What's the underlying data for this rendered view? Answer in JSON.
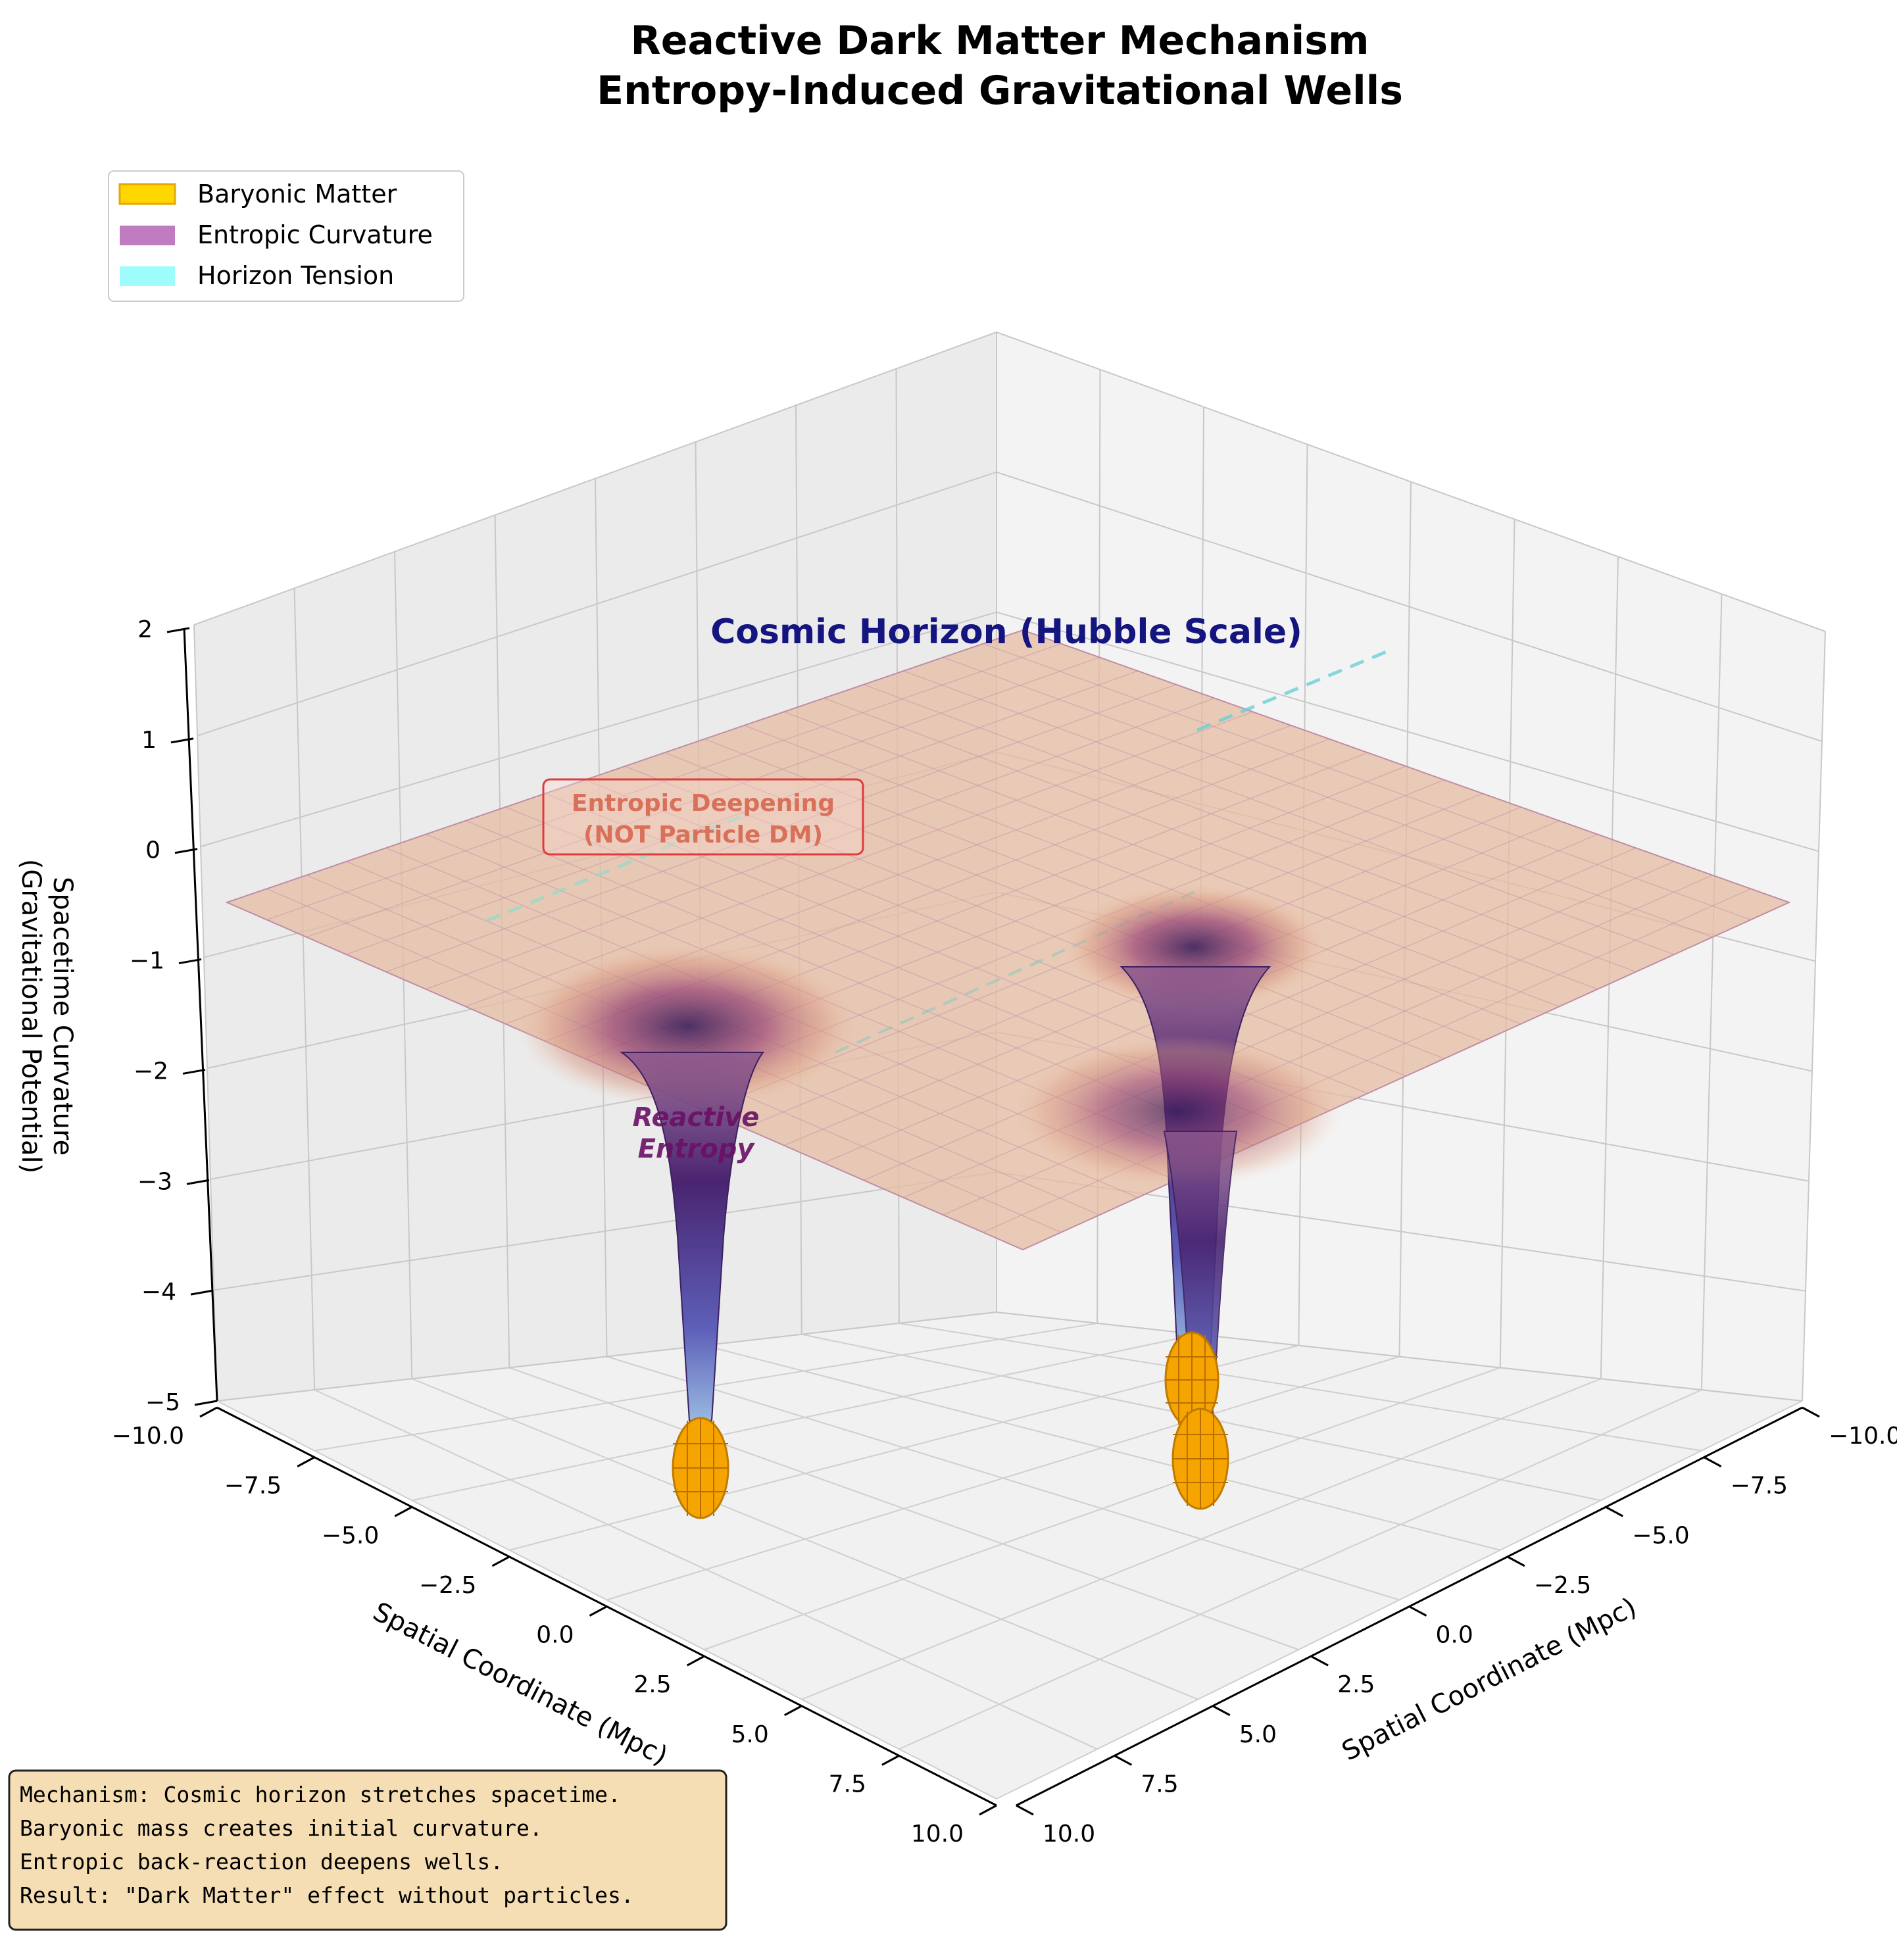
{
  "chart_data": {
    "type": "surface3d",
    "title": [
      "Reactive Dark Matter Mechanism",
      "Entropy-Induced Gravitational Wells"
    ],
    "x_axis": {
      "label": "Spatial Coordinate (Mpc)",
      "ticks": [
        "−10.0",
        "−7.5",
        "−5.0",
        "−2.5",
        "0.0",
        "2.5",
        "5.0",
        "7.5",
        "10.0"
      ],
      "range": [
        -10,
        10
      ]
    },
    "y_axis": {
      "label": "Spatial Coordinate (Mpc)",
      "ticks": [
        "−10.0",
        "−7.5",
        "−5.0",
        "−2.5",
        "0.0",
        "2.5",
        "5.0",
        "7.5",
        "10.0"
      ],
      "range": [
        -10,
        10
      ]
    },
    "z_axis": {
      "label": [
        "Spacetime Curvature",
        "(Gravitational Potential)"
      ],
      "ticks": [
        "−5",
        "−4",
        "−3",
        "−2",
        "−1",
        "0",
        "1",
        "2"
      ],
      "range": [
        -5,
        2
      ]
    },
    "legend": {
      "position": "upper-left",
      "entries": [
        {
          "label": "Baryonic Matter",
          "color": "#ffd700",
          "edge": "#e6a800"
        },
        {
          "label": "Entropic Curvature",
          "color": "#c07cc0"
        },
        {
          "label": "Horizon Tension",
          "color": "#9ffcfc"
        }
      ]
    },
    "wells": [
      {
        "name": "Baryonic mass 1",
        "x": 0.0,
        "y": 0.0,
        "min_z": -5.0
      },
      {
        "name": "Baryonic mass 2",
        "x": 4.5,
        "y": 4.5,
        "min_z": -5.0
      },
      {
        "name": "Baryonic mass 3",
        "x": 4.0,
        "y": 3.5,
        "min_z": -5.0
      }
    ],
    "surface_colors": {
      "plateau": "#e9c3a8",
      "rim": "#d9877a",
      "throat": "#5a2d7a",
      "tip": "#8fb4e0"
    },
    "annotations": {
      "horizon": "Cosmic Horizon (Hubble Scale)",
      "deepening": [
        "Entropic Deepening",
        "(NOT Particle DM)"
      ],
      "reactive": [
        "Reactive",
        "Entropy"
      ]
    },
    "info_box": [
      "Mechanism: Cosmic horizon stretches spacetime.",
      "Baryonic mass creates initial curvature.",
      "Entropic back-reaction deepens wells.",
      "Result: \"Dark Matter\" effect without particles."
    ]
  }
}
